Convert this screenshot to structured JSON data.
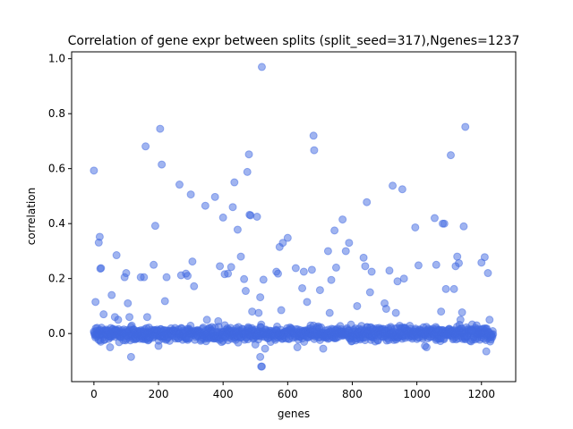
{
  "chart_data": {
    "type": "scatter",
    "title": "Correlation of gene expr between splits (split_seed=317),Ngenes=1237",
    "xlabel": "genes",
    "ylabel": "correlation",
    "xlim": [
      -69,
      1306
    ],
    "ylim": [
      -0.175,
      1.025
    ],
    "xticks": [
      0,
      200,
      400,
      600,
      800,
      1000,
      1200
    ],
    "yticks": [
      0.0,
      0.2,
      0.4,
      0.6,
      0.8,
      1.0
    ],
    "xtick_labels": [
      "0",
      "200",
      "400",
      "600",
      "800",
      "1000",
      "1200"
    ],
    "ytick_labels": [
      "0.0",
      "0.2",
      "0.4",
      "0.6",
      "0.8",
      "1.0"
    ],
    "grid": false,
    "legend": "none",
    "point_color": "#4169e1",
    "point_alpha": 0.5,
    "n_points": 1237,
    "baseline_band": {
      "center": 0.0,
      "halfwidth": 0.025,
      "x_range": [
        0,
        1236
      ]
    },
    "points": [
      [
        0,
        0.593
      ],
      [
        5,
        0.115
      ],
      [
        15,
        0.331
      ],
      [
        18,
        0.352
      ],
      [
        20,
        0.236
      ],
      [
        22,
        0.238
      ],
      [
        30,
        0.07
      ],
      [
        50,
        -0.05
      ],
      [
        55,
        0.14
      ],
      [
        65,
        0.06
      ],
      [
        70,
        0.285
      ],
      [
        75,
        0.05
      ],
      [
        95,
        0.205
      ],
      [
        100,
        0.22
      ],
      [
        105,
        0.11
      ],
      [
        110,
        0.06
      ],
      [
        115,
        -0.085
      ],
      [
        145,
        0.205
      ],
      [
        155,
        0.205
      ],
      [
        160,
        0.681
      ],
      [
        165,
        0.06
      ],
      [
        185,
        0.25
      ],
      [
        190,
        0.392
      ],
      [
        200,
        -0.045
      ],
      [
        205,
        0.745
      ],
      [
        210,
        0.615
      ],
      [
        220,
        0.118
      ],
      [
        225,
        0.205
      ],
      [
        265,
        0.542
      ],
      [
        270,
        0.212
      ],
      [
        285,
        0.218
      ],
      [
        290,
        0.21
      ],
      [
        300,
        0.506
      ],
      [
        305,
        0.262
      ],
      [
        310,
        0.172
      ],
      [
        345,
        0.465
      ],
      [
        350,
        0.05
      ],
      [
        375,
        0.497
      ],
      [
        385,
        0.045
      ],
      [
        390,
        0.245
      ],
      [
        400,
        0.422
      ],
      [
        405,
        0.216
      ],
      [
        415,
        0.218
      ],
      [
        425,
        0.242
      ],
      [
        430,
        0.46
      ],
      [
        435,
        0.55
      ],
      [
        445,
        0.378
      ],
      [
        455,
        0.28
      ],
      [
        465,
        0.198
      ],
      [
        470,
        0.155
      ],
      [
        475,
        0.588
      ],
      [
        480,
        0.652
      ],
      [
        482,
        0.432
      ],
      [
        485,
        0.43
      ],
      [
        490,
        0.08
      ],
      [
        500,
        -0.04
      ],
      [
        505,
        0.425
      ],
      [
        510,
        0.075
      ],
      [
        515,
        0.132
      ],
      [
        515,
        -0.085
      ],
      [
        518,
        -0.12
      ],
      [
        520,
        -0.12
      ],
      [
        520,
        0.97
      ],
      [
        525,
        0.196
      ],
      [
        530,
        -0.055
      ],
      [
        565,
        0.225
      ],
      [
        570,
        0.218
      ],
      [
        575,
        0.315
      ],
      [
        580,
        0.085
      ],
      [
        585,
        0.33
      ],
      [
        600,
        0.348
      ],
      [
        625,
        0.238
      ],
      [
        630,
        -0.05
      ],
      [
        645,
        0.165
      ],
      [
        650,
        0.225
      ],
      [
        660,
        0.115
      ],
      [
        675,
        0.232
      ],
      [
        680,
        0.72
      ],
      [
        682,
        0.667
      ],
      [
        700,
        0.158
      ],
      [
        710,
        -0.055
      ],
      [
        725,
        0.3
      ],
      [
        730,
        0.075
      ],
      [
        735,
        0.195
      ],
      [
        745,
        0.375
      ],
      [
        750,
        0.24
      ],
      [
        770,
        0.415
      ],
      [
        780,
        0.3
      ],
      [
        790,
        0.33
      ],
      [
        815,
        0.1
      ],
      [
        835,
        0.276
      ],
      [
        840,
        0.245
      ],
      [
        845,
        0.478
      ],
      [
        855,
        0.15
      ],
      [
        860,
        0.225
      ],
      [
        900,
        0.11
      ],
      [
        905,
        0.09
      ],
      [
        915,
        0.229
      ],
      [
        925,
        0.538
      ],
      [
        935,
        0.075
      ],
      [
        940,
        0.19
      ],
      [
        955,
        0.525
      ],
      [
        960,
        0.2
      ],
      [
        995,
        0.386
      ],
      [
        1005,
        0.248
      ],
      [
        1025,
        -0.045
      ],
      [
        1030,
        -0.05
      ],
      [
        1055,
        0.42
      ],
      [
        1060,
        0.25
      ],
      [
        1075,
        0.08
      ],
      [
        1080,
        0.4
      ],
      [
        1085,
        0.4
      ],
      [
        1090,
        0.162
      ],
      [
        1105,
        0.649
      ],
      [
        1115,
        0.162
      ],
      [
        1120,
        0.245
      ],
      [
        1125,
        0.28
      ],
      [
        1130,
        0.256
      ],
      [
        1135,
        0.05
      ],
      [
        1140,
        0.077
      ],
      [
        1145,
        0.39
      ],
      [
        1150,
        0.752
      ],
      [
        1170,
        0.01
      ],
      [
        1185,
        0.03
      ],
      [
        1200,
        0.258
      ],
      [
        1210,
        0.278
      ],
      [
        1215,
        -0.065
      ],
      [
        1220,
        0.22
      ],
      [
        1225,
        0.05
      ]
    ]
  }
}
